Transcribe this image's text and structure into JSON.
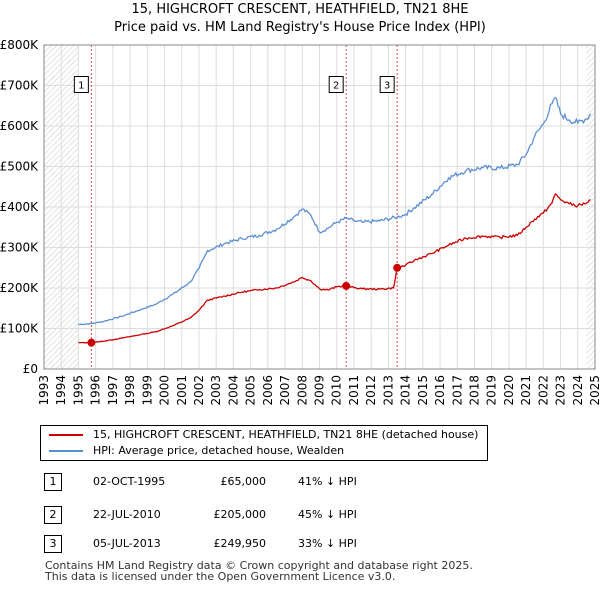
{
  "title_line1": "15, HIGHCROFT CRESCENT, HEATHFIELD, TN21 8HE",
  "title_line2": "Price paid vs. HM Land Registry's House Price Index (HPI)",
  "chart_data": {
    "type": "line",
    "title": "15, HIGHCROFT CRESCENT, HEATHFIELD, TN21 8HE — Price paid vs. HM Land Registry's House Price Index (HPI)",
    "xlabel": "",
    "ylabel": "",
    "xlim": [
      1993,
      2025
    ],
    "ylim": [
      0,
      800000
    ],
    "grid": true,
    "x_ticks": [
      "1993",
      "1994",
      "1995",
      "1996",
      "1997",
      "1998",
      "1999",
      "2000",
      "2001",
      "2002",
      "2003",
      "2004",
      "2005",
      "2006",
      "2007",
      "2008",
      "2009",
      "2010",
      "2011",
      "2012",
      "2013",
      "2014",
      "2015",
      "2016",
      "2017",
      "2018",
      "2019",
      "2020",
      "2021",
      "2022",
      "2023",
      "2024",
      "2025"
    ],
    "y_ticks": [
      {
        "value": 0,
        "label": "£0"
      },
      {
        "value": 100000,
        "label": "£100K"
      },
      {
        "value": 200000,
        "label": "£200K"
      },
      {
        "value": 300000,
        "label": "£300K"
      },
      {
        "value": 400000,
        "label": "£400K"
      },
      {
        "value": 500000,
        "label": "£500K"
      },
      {
        "value": 600000,
        "label": "£600K"
      },
      {
        "value": 700000,
        "label": "£700K"
      },
      {
        "value": 800000,
        "label": "£800K"
      }
    ],
    "hatched_periods": [
      [
        1993,
        1995
      ],
      [
        2024.5,
        2025
      ]
    ],
    "series": [
      {
        "name": "15, HIGHCROFT CRESCENT, HEATHFIELD, TN21 8HE (detached house)",
        "color": "#cc0000",
        "x": [
          1995.0,
          1995.75,
          1996.5,
          1997.5,
          1998.5,
          1999.5,
          2000.5,
          2001.5,
          2002.0,
          2002.5,
          2003.5,
          2004.5,
          2005.5,
          2006.5,
          2007.5,
          2008.0,
          2008.5,
          2009.0,
          2009.5,
          2010.0,
          2010.55,
          2011.0,
          2011.5,
          2012.5,
          2013.3,
          2013.51,
          2014.0,
          2014.5,
          2015.5,
          2016.5,
          2017.5,
          2018.5,
          2019.5,
          2020.5,
          2021.0,
          2021.5,
          2022.0,
          2022.5,
          2022.7,
          2023.0,
          2023.5,
          2024.0,
          2024.5,
          2024.75
        ],
        "values": [
          65000,
          65000,
          69000,
          76000,
          84000,
          92000,
          107000,
          126000,
          145000,
          170000,
          180000,
          190000,
          196000,
          200000,
          215000,
          226000,
          218000,
          198000,
          195000,
          203000,
          205000,
          201000,
          198000,
          197000,
          200000,
          249950,
          256000,
          268000,
          285000,
          306000,
          323000,
          328000,
          325000,
          330000,
          350000,
          370000,
          385000,
          410000,
          432000,
          418000,
          408000,
          403000,
          410000,
          418000
        ]
      },
      {
        "name": "HPI: Average price, detached house, Wealden",
        "color": "#5b8fd4",
        "x": [
          1995.0,
          1995.75,
          1996.5,
          1997.5,
          1998.5,
          1999.5,
          2000.5,
          2001.5,
          2002.0,
          2002.5,
          2003.5,
          2004.5,
          2005.5,
          2006.5,
          2007.5,
          2008.0,
          2008.5,
          2009.0,
          2009.5,
          2010.0,
          2010.55,
          2011.0,
          2011.5,
          2012.5,
          2013.51,
          2014.0,
          2014.5,
          2015.5,
          2016.5,
          2017.5,
          2018.5,
          2019.5,
          2020.5,
          2021.0,
          2021.5,
          2022.0,
          2022.5,
          2022.7,
          2023.0,
          2023.5,
          2024.0,
          2024.5,
          2024.75
        ],
        "values": [
          110000,
          112000,
          118000,
          130000,
          145000,
          160000,
          185000,
          215000,
          248000,
          292000,
          310000,
          322000,
          330000,
          345000,
          375000,
          395000,
          380000,
          338000,
          348000,
          362000,
          372000,
          366000,
          362000,
          366000,
          375000,
          382000,
          398000,
          430000,
          472000,
          490000,
          497000,
          496000,
          505000,
          530000,
          575000,
          605000,
          655000,
          670000,
          630000,
          615000,
          608000,
          618000,
          630000
        ]
      }
    ],
    "sale_markers": [
      {
        "label": "1",
        "x": 1995.75,
        "value": 65000
      },
      {
        "label": "2",
        "x": 2010.55,
        "value": 205000
      },
      {
        "label": "3",
        "x": 2013.51,
        "value": 249950
      }
    ]
  },
  "legend": {
    "red_label": "15, HIGHCROFT CRESCENT, HEATHFIELD, TN21 8HE (detached house)",
    "blue_label": "HPI: Average price, detached house, Wealden",
    "red_color": "#cc0000",
    "blue_color": "#5b8fd4"
  },
  "sales": [
    {
      "n": "1",
      "date": "02-OCT-1995",
      "price": "£65,000",
      "hpi": "41% ↓ HPI"
    },
    {
      "n": "2",
      "date": "22-JUL-2010",
      "price": "£205,000",
      "hpi": "45% ↓ HPI"
    },
    {
      "n": "3",
      "date": "05-JUL-2013",
      "price": "£249,950",
      "hpi": "33% ↓ HPI"
    }
  ],
  "footer_line1": "Contains HM Land Registry data © Crown copyright and database right 2025.",
  "footer_line2": "This data is licensed under the Open Government Licence v3.0."
}
